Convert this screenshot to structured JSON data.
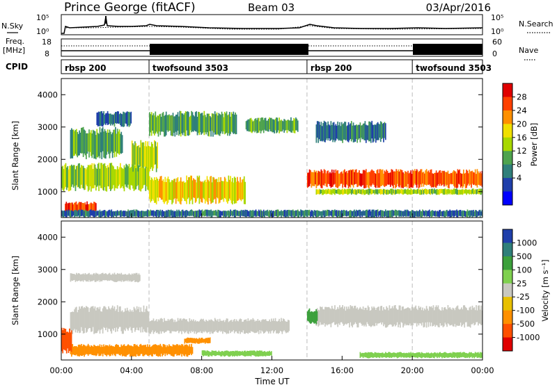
{
  "header": {
    "title": "Prince George (fitACF)",
    "beam": "Beam 03",
    "date": "03/Apr/2016"
  },
  "noise_panel": {
    "left_label": "N.Sky",
    "right_label": "N.Search",
    "left_ticks": [
      "10^5",
      "10^0"
    ],
    "right_ticks": [
      "10^5",
      "10^0"
    ]
  },
  "freq_panel": {
    "left_label_line1": "Freq.",
    "left_label_line2": "[MHz]",
    "right_label": "Nave",
    "left_ticks": [
      "18",
      "8"
    ],
    "right_ticks": [
      "60",
      "0"
    ]
  },
  "cpid_panel": {
    "label": "CPID",
    "segments": [
      {
        "name": "rbsp 200",
        "start_h": 0.0
      },
      {
        "name": "twofsound 3503",
        "start_h": 5.0
      },
      {
        "name": "rbsp 200",
        "start_h": 14.0
      },
      {
        "name": "twofsound 3503",
        "start_h": 20.0
      }
    ]
  },
  "colors": {
    "ground_scatter": "#c8c8c0",
    "power_scale": [
      "#0000ff",
      "#1f3faa",
      "#2f7f7a",
      "#4ea34e",
      "#a8d800",
      "#f0e000",
      "#ff9000",
      "#ff4000",
      "#e00000"
    ],
    "velocity_scale": [
      "#1f3faa",
      "#2f7f7a",
      "#3ca03c",
      "#7fd04f",
      "#c8c8c0",
      "#e8c000",
      "#ff9000",
      "#ff5000",
      "#e00000"
    ]
  },
  "chart_data": [
    {
      "type": "heatmap",
      "panel": "power",
      "xlabel": "",
      "ylabel": "Slant Range [km]",
      "xlim_hours": [
        0,
        24
      ],
      "ylim": [
        200,
        4500
      ],
      "yticks": [
        1000,
        2000,
        3000,
        4000
      ],
      "colorbar": {
        "label": "Power [dB]",
        "range": [
          0,
          32
        ],
        "tick_labels": [
          "28",
          "24",
          "20",
          "16",
          "12",
          "8",
          "4"
        ]
      },
      "scatter_regions": [
        {
          "t0": 0.0,
          "t1": 5.0,
          "r0": 1000,
          "r1": 1900,
          "value": 16
        },
        {
          "t0": 0.2,
          "t1": 2.0,
          "r0": 300,
          "r1": 700,
          "value": 28
        },
        {
          "t0": 0.5,
          "t1": 3.5,
          "r0": 2000,
          "r1": 3000,
          "value": 12
        },
        {
          "t0": 2.0,
          "t1": 4.0,
          "r0": 3000,
          "r1": 3500,
          "value": 8
        },
        {
          "t0": 4.0,
          "t1": 5.5,
          "r0": 1600,
          "r1": 2600,
          "value": 16
        },
        {
          "t0": 5.0,
          "t1": 10.5,
          "r0": 600,
          "r1": 1500,
          "value": 20
        },
        {
          "t0": 5.0,
          "t1": 10.0,
          "r0": 2700,
          "r1": 3500,
          "value": 12
        },
        {
          "t0": 10.5,
          "t1": 13.5,
          "r0": 2800,
          "r1": 3300,
          "value": 12
        },
        {
          "t0": 14.0,
          "t1": 24.0,
          "r0": 1100,
          "r1": 1700,
          "value": 26
        },
        {
          "t0": 14.5,
          "t1": 24.0,
          "r0": 900,
          "r1": 1100,
          "value": 16
        },
        {
          "t0": 14.5,
          "t1": 18.5,
          "r0": 2500,
          "r1": 3200,
          "value": 8
        },
        {
          "t0": 0.0,
          "t1": 24.0,
          "r0": 200,
          "r1": 450,
          "value": 8
        }
      ]
    },
    {
      "type": "heatmap",
      "panel": "velocity",
      "xlabel": "Time UT",
      "ylabel": "Slant Range [km]",
      "xlim_hours": [
        0,
        24
      ],
      "ylim": [
        200,
        4500
      ],
      "yticks": [
        1000,
        2000,
        3000,
        4000
      ],
      "xtick_labels": [
        "00:00",
        "04:00",
        "08:00",
        "12:00",
        "16:00",
        "20:00",
        "00:00"
      ],
      "colorbar": {
        "label": "Velocity [m s^-1]",
        "tick_labels": [
          "1000",
          "500",
          "100",
          "25",
          "-25",
          "-100",
          "-500",
          "-1000"
        ]
      },
      "scatter_regions": [
        {
          "t0": 0.5,
          "t1": 5.0,
          "r0": 1000,
          "r1": 1900,
          "value": 0
        },
        {
          "t0": 5.0,
          "t1": 13.0,
          "r0": 1000,
          "r1": 1500,
          "value": 0
        },
        {
          "t0": 0.5,
          "t1": 4.5,
          "r0": 2600,
          "r1": 2900,
          "value": 0
        },
        {
          "t0": 14.5,
          "t1": 24.0,
          "r0": 1200,
          "r1": 1900,
          "value": 0
        },
        {
          "t0": 0.5,
          "t1": 7.5,
          "r0": 300,
          "r1": 700,
          "value": -250
        },
        {
          "t0": 0.0,
          "t1": 0.6,
          "r0": 400,
          "r1": 1200,
          "value": -700
        },
        {
          "t0": 7.0,
          "t1": 8.5,
          "r0": 700,
          "r1": 900,
          "value": -250
        },
        {
          "t0": 14.0,
          "t1": 14.6,
          "r0": 1300,
          "r1": 1800,
          "value": 300
        },
        {
          "t0": 8.0,
          "t1": 12.0,
          "r0": 300,
          "r1": 500,
          "value": 60
        },
        {
          "t0": 17.0,
          "t1": 24.0,
          "r0": 250,
          "r1": 450,
          "value": 60
        }
      ]
    }
  ]
}
